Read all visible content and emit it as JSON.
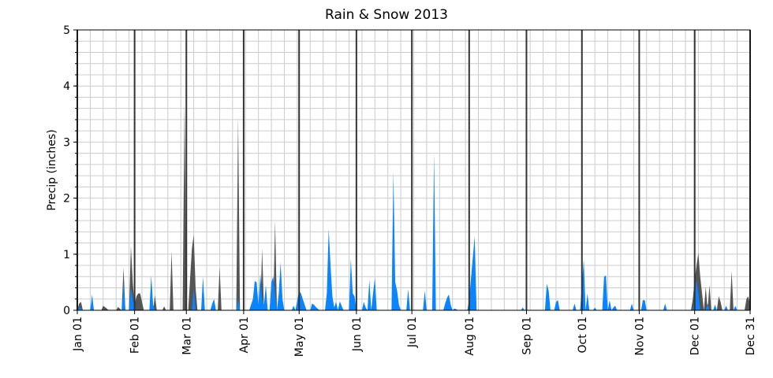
{
  "chart_data": {
    "type": "area",
    "title": "Rain & Snow 2013",
    "xlabel": "",
    "ylabel": "Precip (inches)",
    "xlim": [
      "2013-01-01",
      "2013-12-31"
    ],
    "ylim": [
      0,
      5
    ],
    "yticks": [
      "0",
      "1",
      "2",
      "3",
      "4",
      "5"
    ],
    "xticks": [
      {
        "label": "Jan 01",
        "date": "2013-01-01"
      },
      {
        "label": "Feb 01",
        "date": "2013-02-01"
      },
      {
        "label": "Mar 01",
        "date": "2013-03-01"
      },
      {
        "label": "Apr 01",
        "date": "2013-04-01"
      },
      {
        "label": "May 01",
        "date": "2013-05-01"
      },
      {
        "label": "Jun 01",
        "date": "2013-06-01"
      },
      {
        "label": "Jul 01",
        "date": "2013-07-01"
      },
      {
        "label": "Aug 01",
        "date": "2013-08-01"
      },
      {
        "label": "Sep 01",
        "date": "2013-09-01"
      },
      {
        "label": "Oct 01",
        "date": "2013-10-01"
      },
      {
        "label": "Nov 01",
        "date": "2013-11-01"
      },
      {
        "label": "Dec 01",
        "date": "2013-12-01"
      },
      {
        "label": "Dec 31",
        "date": "2013-12-31"
      }
    ],
    "grid": true,
    "legend": "none",
    "month_boundary_lines": true,
    "series": [
      {
        "color": "#555555",
        "points": [
          [
            "2013-01-01",
            0
          ],
          [
            "2013-01-02",
            0.12
          ],
          [
            "2013-01-03",
            0.15
          ],
          [
            "2013-01-04",
            0
          ],
          [
            "2013-01-14",
            0
          ],
          [
            "2013-01-15",
            0.08
          ],
          [
            "2013-01-17",
            0.03
          ],
          [
            "2013-01-18",
            0
          ],
          [
            "2013-01-22",
            0
          ],
          [
            "2013-01-23",
            0.06
          ],
          [
            "2013-01-24",
            0.03
          ],
          [
            "2013-01-25",
            0
          ],
          [
            "2013-01-26",
            0.76
          ],
          [
            "2013-01-27",
            0
          ],
          [
            "2013-01-29",
            0
          ],
          [
            "2013-01-30",
            1.15
          ],
          [
            "2013-01-31",
            0.5
          ],
          [
            "2013-02-01",
            0.1
          ],
          [
            "2013-02-02",
            0.25
          ],
          [
            "2013-02-03",
            0.3
          ],
          [
            "2013-02-04",
            0.3
          ],
          [
            "2013-02-05",
            0.15
          ],
          [
            "2013-02-06",
            0
          ],
          [
            "2013-02-11",
            0
          ],
          [
            "2013-02-12",
            0.27
          ],
          [
            "2013-02-13",
            0
          ],
          [
            "2013-02-16",
            0
          ],
          [
            "2013-02-17",
            0.07
          ],
          [
            "2013-02-18",
            0
          ],
          [
            "2013-02-20",
            0
          ],
          [
            "2013-02-21",
            1.05
          ],
          [
            "2013-02-22",
            0
          ],
          [
            "2013-02-27",
            0
          ],
          [
            "2013-02-28",
            3.75
          ],
          [
            "2013-03-01",
            0
          ],
          [
            "2013-03-02",
            0
          ],
          [
            "2013-03-03",
            0.55
          ],
          [
            "2013-03-04",
            1.1
          ],
          [
            "2013-03-05",
            1.35
          ],
          [
            "2013-03-06",
            0.4
          ],
          [
            "2013-03-07",
            0
          ],
          [
            "2013-03-18",
            0
          ],
          [
            "2013-03-19",
            0.77
          ],
          [
            "2013-03-20",
            0
          ],
          [
            "2013-03-28",
            0
          ],
          [
            "2013-03-29",
            3.45
          ],
          [
            "2013-03-30",
            0
          ],
          [
            "2013-04-10",
            0
          ],
          [
            "2013-04-11",
            1.1
          ],
          [
            "2013-04-12",
            0
          ],
          [
            "2013-04-17",
            0
          ],
          [
            "2013-04-18",
            1.6
          ],
          [
            "2013-04-19",
            0
          ],
          [
            "2013-11-29",
            0
          ],
          [
            "2013-11-30",
            0.2
          ],
          [
            "2013-12-01",
            0.55
          ],
          [
            "2013-12-02",
            0.8
          ],
          [
            "2013-12-03",
            1.02
          ],
          [
            "2013-12-04",
            0.6
          ],
          [
            "2013-12-05",
            0.3
          ],
          [
            "2013-12-06",
            0
          ],
          [
            "2013-12-07",
            0.42
          ],
          [
            "2013-12-08",
            0
          ],
          [
            "2013-12-09",
            0.45
          ],
          [
            "2013-12-10",
            0
          ],
          [
            "2013-12-13",
            0
          ],
          [
            "2013-12-14",
            0.25
          ],
          [
            "2013-12-15",
            0.15
          ],
          [
            "2013-12-16",
            0
          ],
          [
            "2013-12-20",
            0
          ],
          [
            "2013-12-21",
            0.7
          ],
          [
            "2013-12-22",
            0
          ],
          [
            "2013-12-28",
            0
          ],
          [
            "2013-12-29",
            0.2
          ],
          [
            "2013-12-30",
            0.25
          ],
          [
            "2013-12-31",
            0.1
          ]
        ]
      },
      {
        "color": "#0a84ff",
        "points": [
          [
            "2013-01-01",
            0
          ],
          [
            "2013-01-02",
            0.05
          ],
          [
            "2013-01-03",
            0.03
          ],
          [
            "2013-01-04",
            0
          ],
          [
            "2013-01-08",
            0
          ],
          [
            "2013-01-09",
            0.28
          ],
          [
            "2013-01-10",
            0
          ],
          [
            "2013-01-25",
            0
          ],
          [
            "2013-01-26",
            0.5
          ],
          [
            "2013-01-27",
            0
          ],
          [
            "2013-01-29",
            0
          ],
          [
            "2013-01-30",
            0.4
          ],
          [
            "2013-01-31",
            0.2
          ],
          [
            "2013-02-01",
            0.05
          ],
          [
            "2013-02-02",
            0
          ],
          [
            "2013-02-09",
            0
          ],
          [
            "2013-02-10",
            0.62
          ],
          [
            "2013-02-11",
            0.1
          ],
          [
            "2013-02-12",
            0
          ],
          [
            "2013-03-04",
            0
          ],
          [
            "2013-03-05",
            0.4
          ],
          [
            "2013-03-06",
            0
          ],
          [
            "2013-03-09",
            0
          ],
          [
            "2013-03-10",
            0.6
          ],
          [
            "2013-03-11",
            0
          ],
          [
            "2013-03-14",
            0
          ],
          [
            "2013-03-15",
            0.12
          ],
          [
            "2013-03-16",
            0.2
          ],
          [
            "2013-03-17",
            0
          ],
          [
            "2013-03-28",
            0
          ],
          [
            "2013-03-29",
            0.2
          ],
          [
            "2013-03-30",
            0
          ],
          [
            "2013-04-04",
            0
          ],
          [
            "2013-04-05",
            0.1
          ],
          [
            "2013-04-06",
            0.2
          ],
          [
            "2013-04-07",
            0.52
          ],
          [
            "2013-04-08",
            0.5
          ],
          [
            "2013-04-09",
            0.1
          ],
          [
            "2013-04-10",
            0.65
          ],
          [
            "2013-04-11",
            0.2
          ],
          [
            "2013-04-12",
            0.1
          ],
          [
            "2013-04-13",
            0.45
          ],
          [
            "2013-04-14",
            0
          ],
          [
            "2013-04-15",
            0
          ],
          [
            "2013-04-16",
            0.5
          ],
          [
            "2013-04-17",
            0.6
          ],
          [
            "2013-04-18",
            0.3
          ],
          [
            "2013-04-19",
            0
          ],
          [
            "2013-04-20",
            0.3
          ],
          [
            "2013-04-21",
            0.85
          ],
          [
            "2013-04-22",
            0.2
          ],
          [
            "2013-04-23",
            0
          ],
          [
            "2013-04-27",
            0
          ],
          [
            "2013-04-28",
            0.08
          ],
          [
            "2013-04-29",
            0
          ],
          [
            "2013-05-01",
            0.35
          ],
          [
            "2013-05-02",
            0.3
          ],
          [
            "2013-05-03",
            0.2
          ],
          [
            "2013-05-04",
            0.1
          ],
          [
            "2013-05-05",
            0
          ],
          [
            "2013-05-07",
            0
          ],
          [
            "2013-05-08",
            0.12
          ],
          [
            "2013-05-09",
            0.1
          ],
          [
            "2013-05-10",
            0.06
          ],
          [
            "2013-05-11",
            0.03
          ],
          [
            "2013-05-12",
            0
          ],
          [
            "2013-05-15",
            0
          ],
          [
            "2013-05-16",
            0.3
          ],
          [
            "2013-05-17",
            1.45
          ],
          [
            "2013-05-18",
            0.8
          ],
          [
            "2013-05-19",
            0.25
          ],
          [
            "2013-05-20",
            0.05
          ],
          [
            "2013-05-21",
            0.15
          ],
          [
            "2013-05-22",
            0
          ],
          [
            "2013-05-23",
            0.16
          ],
          [
            "2013-05-24",
            0.08
          ],
          [
            "2013-05-25",
            0
          ],
          [
            "2013-05-28",
            0
          ],
          [
            "2013-05-29",
            0.92
          ],
          [
            "2013-05-30",
            0.3
          ],
          [
            "2013-05-31",
            0.25
          ],
          [
            "2013-06-01",
            0
          ],
          [
            "2013-06-04",
            0
          ],
          [
            "2013-06-05",
            0.15
          ],
          [
            "2013-06-06",
            0.05
          ],
          [
            "2013-06-07",
            0
          ],
          [
            "2013-06-08",
            0.54
          ],
          [
            "2013-06-09",
            0
          ],
          [
            "2013-06-10",
            0.3
          ],
          [
            "2013-06-11",
            0.58
          ],
          [
            "2013-06-12",
            0
          ],
          [
            "2013-06-20",
            0
          ],
          [
            "2013-06-21",
            2.48
          ],
          [
            "2013-06-22",
            0.5
          ],
          [
            "2013-06-23",
            0.35
          ],
          [
            "2013-06-24",
            0.1
          ],
          [
            "2013-06-25",
            0
          ],
          [
            "2013-06-28",
            0
          ],
          [
            "2013-06-29",
            0.38
          ],
          [
            "2013-06-30",
            0
          ],
          [
            "2013-07-07",
            0
          ],
          [
            "2013-07-08",
            0.35
          ],
          [
            "2013-07-09",
            0
          ],
          [
            "2013-07-12",
            0
          ],
          [
            "2013-07-13",
            2.8
          ],
          [
            "2013-07-14",
            0
          ],
          [
            "2013-07-18",
            0
          ],
          [
            "2013-07-19",
            0.12
          ],
          [
            "2013-07-20",
            0.22
          ],
          [
            "2013-07-21",
            0.28
          ],
          [
            "2013-07-22",
            0.1
          ],
          [
            "2013-07-23",
            0
          ],
          [
            "2013-07-24",
            0.03
          ],
          [
            "2013-07-25",
            0.02
          ],
          [
            "2013-07-26",
            0
          ],
          [
            "2013-07-31",
            0
          ],
          [
            "2013-08-01",
            0.2
          ],
          [
            "2013-08-04",
            1.32
          ],
          [
            "2013-08-05",
            0
          ],
          [
            "2013-08-29",
            0
          ],
          [
            "2013-08-30",
            0.05
          ],
          [
            "2013-08-31",
            0
          ],
          [
            "2013-09-11",
            0
          ],
          [
            "2013-09-12",
            0.47
          ],
          [
            "2013-09-13",
            0.35
          ],
          [
            "2013-09-14",
            0
          ],
          [
            "2013-09-16",
            0
          ],
          [
            "2013-09-17",
            0.15
          ],
          [
            "2013-09-18",
            0.18
          ],
          [
            "2013-09-19",
            0
          ],
          [
            "2013-09-26",
            0
          ],
          [
            "2013-09-27",
            0.12
          ],
          [
            "2013-09-28",
            0
          ],
          [
            "2013-09-30",
            0
          ],
          [
            "2013-10-02",
            0.9
          ],
          [
            "2013-10-03",
            0
          ],
          [
            "2013-10-04",
            0.3
          ],
          [
            "2013-10-05",
            0
          ],
          [
            "2013-10-07",
            0
          ],
          [
            "2013-10-08",
            0.05
          ],
          [
            "2013-10-09",
            0
          ],
          [
            "2013-10-12",
            0
          ],
          [
            "2013-10-13",
            0.6
          ],
          [
            "2013-10-14",
            0.62
          ],
          [
            "2013-10-15",
            0
          ],
          [
            "2013-10-16",
            0.18
          ],
          [
            "2013-10-17",
            0
          ],
          [
            "2013-10-18",
            0.05
          ],
          [
            "2013-10-19",
            0.08
          ],
          [
            "2013-10-20",
            0
          ],
          [
            "2013-10-27",
            0
          ],
          [
            "2013-10-28",
            0.12
          ],
          [
            "2013-10-29",
            0
          ],
          [
            "2013-11-02",
            0
          ],
          [
            "2013-11-03",
            0.18
          ],
          [
            "2013-11-04",
            0.18
          ],
          [
            "2013-11-05",
            0
          ],
          [
            "2013-11-14",
            0
          ],
          [
            "2013-11-15",
            0.12
          ],
          [
            "2013-11-16",
            0
          ],
          [
            "2013-11-30",
            0
          ],
          [
            "2013-12-01",
            0.2
          ],
          [
            "2013-12-02",
            0.55
          ],
          [
            "2013-12-03",
            0.3
          ],
          [
            "2013-12-04",
            0
          ],
          [
            "2013-12-07",
            0
          ],
          [
            "2013-12-08",
            0.12
          ],
          [
            "2013-12-09",
            0
          ],
          [
            "2013-12-11",
            0
          ],
          [
            "2013-12-12",
            0.1
          ],
          [
            "2013-12-13",
            0
          ],
          [
            "2013-12-17",
            0
          ],
          [
            "2013-12-18",
            0.08
          ],
          [
            "2013-12-19",
            0
          ],
          [
            "2013-12-22",
            0
          ],
          [
            "2013-12-23",
            0.08
          ],
          [
            "2013-12-24",
            0
          ]
        ]
      }
    ]
  }
}
